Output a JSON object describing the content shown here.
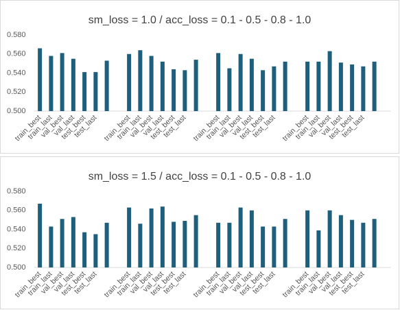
{
  "chart_data": [
    {
      "type": "bar",
      "title": "sm_loss = 1.0 / acc_loss = 0.1 - 0.5 - 0.8 - 1.0",
      "color": "#1f5f7e",
      "categories": [
        "train_best",
        "train_last",
        "val_best",
        "val_last",
        "test_best",
        "test_last",
        null,
        null,
        "train_best",
        "train_last",
        "val_best",
        "val_last",
        "test_best",
        "test_last",
        null,
        null,
        "train_best",
        "train_last",
        "val_best",
        "val_last",
        "test_best",
        "test_last",
        null,
        null,
        "train_best",
        "train_last",
        "val_best",
        "val_last",
        "test_best",
        "test_last",
        null,
        null
      ],
      "values": [
        0.566,
        0.558,
        0.561,
        0.555,
        0.541,
        0.541,
        0.553,
        null,
        0.56,
        0.564,
        0.558,
        0.552,
        0.544,
        0.543,
        0.554,
        null,
        0.561,
        0.545,
        0.56,
        0.555,
        0.543,
        0.547,
        0.552,
        null,
        0.552,
        0.552,
        0.563,
        0.551,
        0.549,
        0.547,
        0.552,
        null
      ],
      "ylim": [
        0.5,
        0.58
      ],
      "yticks": [
        {
          "value": 0.5,
          "label": "0.500"
        },
        {
          "value": 0.52,
          "label": "0.520"
        },
        {
          "value": 0.54,
          "label": "0.540"
        },
        {
          "value": 0.56,
          "label": "0.560"
        },
        {
          "value": 0.58,
          "label": "0.580"
        }
      ],
      "grid": false
    },
    {
      "type": "bar",
      "title": "sm_loss = 1.5 / acc_loss = 0.1 - 0.5 - 0.8 - 1.0",
      "color": "#1f5f7e",
      "categories": [
        "train_best",
        "train_last",
        "val_best",
        "val_last",
        "test_best",
        "test_last",
        null,
        null,
        "train_best",
        "train_last",
        "val_best",
        "val_last",
        "test_best",
        "test_last",
        null,
        null,
        "train_best",
        "train_last",
        "val_best",
        "val_last",
        "test_best",
        "test_last",
        null,
        null,
        "train_best",
        "train_last",
        "val_best",
        "val_last",
        "test_best",
        "test_last",
        null,
        null
      ],
      "values": [
        0.567,
        0.543,
        0.551,
        0.553,
        0.537,
        0.535,
        0.547,
        null,
        0.563,
        0.546,
        0.562,
        0.564,
        0.548,
        0.549,
        0.555,
        null,
        0.547,
        0.547,
        0.563,
        0.56,
        0.543,
        0.543,
        0.551,
        null,
        0.56,
        0.539,
        0.56,
        0.555,
        0.55,
        0.547,
        0.551,
        null
      ],
      "ylim": [
        0.5,
        0.58
      ],
      "yticks": [
        {
          "value": 0.5,
          "label": "0.500"
        },
        {
          "value": 0.52,
          "label": "0.520"
        },
        {
          "value": 0.54,
          "label": "0.540"
        },
        {
          "value": 0.56,
          "label": "0.560"
        },
        {
          "value": 0.58,
          "label": "0.580"
        }
      ],
      "grid": false
    }
  ]
}
